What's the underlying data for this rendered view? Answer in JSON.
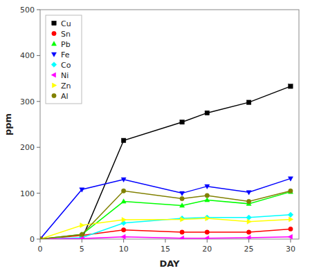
{
  "chart_data": {
    "type": "line",
    "xlabel": "DAY",
    "ylabel": "ppm",
    "x": [
      0,
      5,
      10,
      17,
      20,
      25,
      30
    ],
    "series": [
      {
        "name": "Cu",
        "color": "#000000",
        "marker": "square",
        "values": [
          0,
          0,
          215,
          255,
          275,
          298,
          333
        ]
      },
      {
        "name": "Sn",
        "color": "#ff0000",
        "marker": "circle",
        "values": [
          0,
          8,
          20,
          15,
          15,
          15,
          22
        ]
      },
      {
        "name": "Pb",
        "color": "#00ff00",
        "marker": "triangle-up",
        "values": [
          0,
          10,
          82,
          73,
          85,
          77,
          103
        ]
      },
      {
        "name": "Fe",
        "color": "#0000ff",
        "marker": "triangle-down",
        "values": [
          0,
          108,
          130,
          100,
          115,
          102,
          132
        ]
      },
      {
        "name": "Co",
        "color": "#00ffff",
        "marker": "diamond",
        "values": [
          0,
          3,
          35,
          45,
          47,
          47,
          53
        ]
      },
      {
        "name": "Ni",
        "color": "#ff00ff",
        "marker": "triangle-left",
        "values": [
          0,
          1,
          5,
          2,
          2,
          3,
          5
        ]
      },
      {
        "name": "Zn",
        "color": "#ffff00",
        "marker": "triangle-right",
        "values": [
          0,
          30,
          42,
          43,
          45,
          38,
          43
        ]
      },
      {
        "name": "Al",
        "color": "#808000",
        "marker": "circle",
        "values": [
          0,
          10,
          105,
          88,
          95,
          82,
          105
        ]
      }
    ],
    "xlim": [
      0,
      31
    ],
    "xticks": [
      0,
      5,
      10,
      15,
      20,
      25,
      30
    ],
    "ylim": [
      0,
      500
    ],
    "yticks": [
      0,
      100,
      200,
      300,
      400,
      500
    ],
    "grid": false,
    "legend": "upper left"
  }
}
